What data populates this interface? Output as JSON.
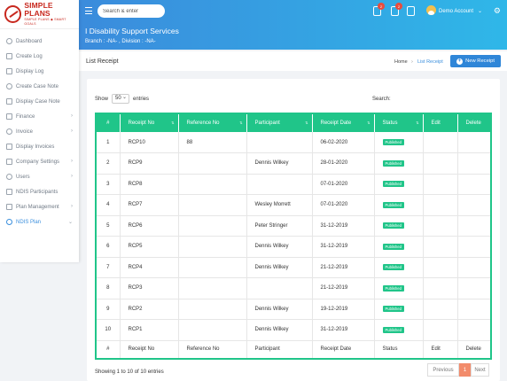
{
  "logo": {
    "title": "SIMPLE PLANS",
    "subtitle": "SIMPLE PLANS ◆ SMART GOALS",
    "brand_color": "#c8281e"
  },
  "sidebar": {
    "items": [
      {
        "label": "Dashboard",
        "icon": "dashboard-icon",
        "caret": ""
      },
      {
        "label": "Create Log",
        "icon": "log-icon",
        "caret": ""
      },
      {
        "label": "Display Log",
        "icon": "list-icon",
        "caret": ""
      },
      {
        "label": "Create Case Note",
        "icon": "note-icon",
        "caret": ""
      },
      {
        "label": "Display Case Note",
        "icon": "note-list-icon",
        "caret": ""
      },
      {
        "label": "Finance",
        "icon": "finance-icon",
        "caret": "›"
      },
      {
        "label": "Invoice",
        "icon": "invoice-icon",
        "caret": "›"
      },
      {
        "label": "Display Invoices",
        "icon": "invoices-icon",
        "caret": ""
      },
      {
        "label": "Company Settings",
        "icon": "settings-icon",
        "caret": "›"
      },
      {
        "label": "Users",
        "icon": "users-icon",
        "caret": "›"
      },
      {
        "label": "NDIS Participants",
        "icon": "participants-icon",
        "caret": ""
      },
      {
        "label": "Plan Management",
        "icon": "plan-icon",
        "caret": "›"
      },
      {
        "label": "NDIS Plan",
        "icon": "ndis-plan-icon",
        "caret": "⌄"
      }
    ]
  },
  "topbar": {
    "search_placeholder": "Search & enter",
    "notifications": [
      {
        "icon": "bell-icon",
        "count": "2"
      },
      {
        "icon": "mail-icon",
        "count": "2"
      },
      {
        "icon": "tablet-icon",
        "count": ""
      }
    ],
    "account_label": "Demo Account",
    "account_caret": "⌄",
    "gear": "⚙"
  },
  "band": {
    "title": "I Disability Support Services",
    "subtitle": "Branch : -NA- , Division : -NA-"
  },
  "page": {
    "title": "List Receipt",
    "breadcrumb_home": "Home",
    "breadcrumb_sep": "›",
    "breadcrumb_current": "List Receipt",
    "new_button_label": "New Receipt",
    "new_button_plus": "+"
  },
  "controls": {
    "show_label": "Show",
    "show_value": "50",
    "entries_label": "entries",
    "search_label": "Search:"
  },
  "table": {
    "columns": [
      "#",
      "Receipt No",
      "Reference No",
      "Participant",
      "Receipt Date",
      "Status",
      "Edit",
      "Delete"
    ],
    "rows": [
      {
        "num": "1",
        "receipt": "RCP10",
        "ref": "88",
        "participant": "",
        "date": "06-02-2020",
        "status": "Published"
      },
      {
        "num": "2",
        "receipt": "RCP9",
        "ref": "",
        "participant": "Dennis Wilkey",
        "date": "28-01-2020",
        "status": "Published"
      },
      {
        "num": "3",
        "receipt": "RCP8",
        "ref": "",
        "participant": "",
        "date": "07-01-2020",
        "status": "Published"
      },
      {
        "num": "4",
        "receipt": "RCP7",
        "ref": "",
        "participant": "Wesley Morrett",
        "date": "07-01-2020",
        "status": "Published"
      },
      {
        "num": "5",
        "receipt": "RCP6",
        "ref": "",
        "participant": "Peter Stringer",
        "date": "31-12-2019",
        "status": "Published"
      },
      {
        "num": "6",
        "receipt": "RCP5",
        "ref": "",
        "participant": "Dennis Wilkey",
        "date": "31-12-2019",
        "status": "Published"
      },
      {
        "num": "7",
        "receipt": "RCP4",
        "ref": "",
        "participant": "Dennis Wilkey",
        "date": "21-12-2019",
        "status": "Published"
      },
      {
        "num": "8",
        "receipt": "RCP3",
        "ref": "",
        "participant": "",
        "date": "21-12-2019",
        "status": "Published"
      },
      {
        "num": "9",
        "receipt": "RCP2",
        "ref": "",
        "participant": "Dennis Wilkey",
        "date": "19-12-2019",
        "status": "Published"
      },
      {
        "num": "10",
        "receipt": "RCP1",
        "ref": "",
        "participant": "Dennis Wilkey",
        "date": "31-12-2019",
        "status": "Published"
      }
    ],
    "accent_color": "#20c589"
  },
  "footer": {
    "showing_text": "Showing 1 to 10 of 10 entries",
    "prev_label": "Previous",
    "current_page": "1",
    "next_label": "Next"
  }
}
